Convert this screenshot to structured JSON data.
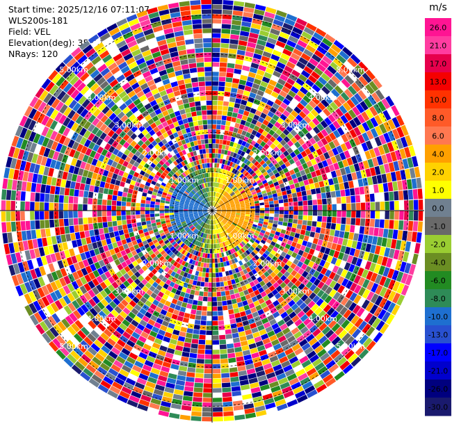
{
  "info": {
    "start_time": "Start time: 2025/12/16 07:11:07",
    "instrument": "WLS200s-181",
    "field": "Field: VEL",
    "elevation": "Elevation(deg): 35.00",
    "nrays": "NRays: 120"
  },
  "chart_data": {
    "type": "heatmap",
    "projection": "polar",
    "field": "VEL",
    "nrays": 120,
    "elevation_deg": 35.0,
    "range_ring_labels": [
      "1.00km",
      "2.00km",
      "3.00km",
      "4.00km",
      "5.00km"
    ],
    "colorbar": {
      "unit": "m/s",
      "tick_labels": [
        "26.0",
        "21.0",
        "17.0",
        "13.0",
        "10.0",
        "8.0",
        "6.0",
        "4.0",
        "2.0",
        "1.0",
        "0.0",
        "-1.0",
        "-2.0",
        "-4.0",
        "-6.0",
        "-8.0",
        "-10.0",
        "-13.0",
        "-17.0",
        "-21.0",
        "-26.0",
        "-30.0"
      ],
      "colors": [
        "#ff1493",
        "#ff3ca0",
        "#e6004c",
        "#f50000",
        "#ff3200",
        "#ff5a28",
        "#ff7850",
        "#ffa000",
        "#ffd200",
        "#ffff00",
        "#708090",
        "#696969",
        "#9acd32",
        "#6b8e23",
        "#228b22",
        "#2e8b57",
        "#1e6fd0",
        "#2850d0",
        "#0000ff",
        "#0000cd",
        "#00007f",
        "#1a1a6e"
      ]
    },
    "legend": "right"
  },
  "colors": {
    "grid": "#000000",
    "background": "#ffffff",
    "ring_label": "#ffffff"
  }
}
